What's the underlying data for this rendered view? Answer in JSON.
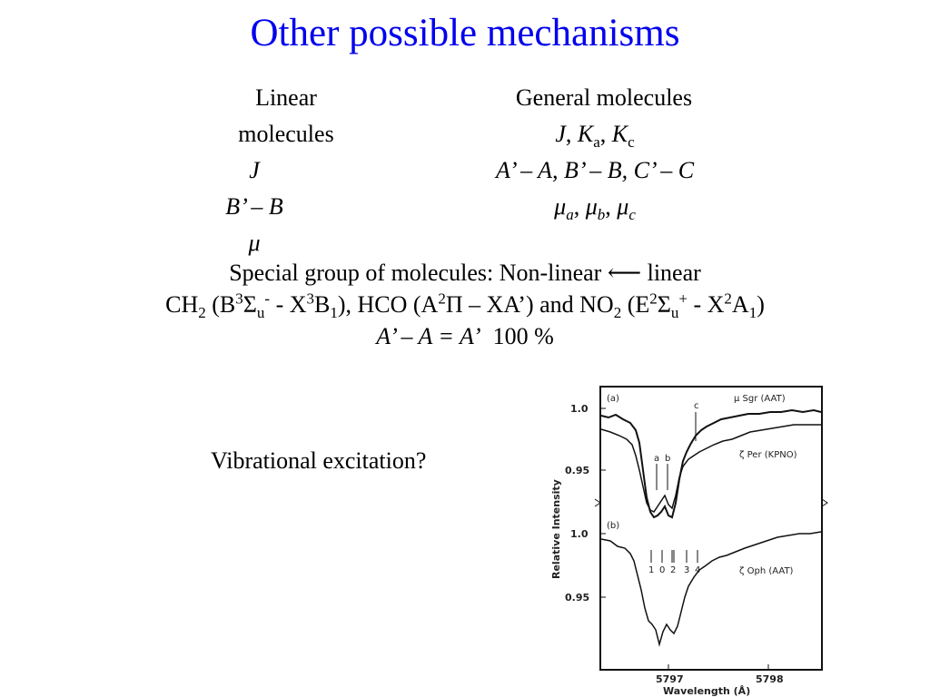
{
  "title": "Other possible mechanisms",
  "columns": {
    "left": {
      "header": "Linear molecules",
      "quantum_numbers": "J",
      "rot_const": "B’ – B",
      "dipole": "μ"
    },
    "right": {
      "header": "General molecules",
      "qn_J": "J",
      "qn_Ka": "K",
      "qn_Ka_sub": "a",
      "qn_Kc": "K",
      "qn_Kc_sub": "c",
      "rot_consts": "A’ – A, B’ – B, C’ – C",
      "mu_a": "a",
      "mu_b": "b",
      "mu_c": "c",
      "mu_symbol": "μ"
    }
  },
  "special": {
    "line1": "Special group of molecules: Non-linear ⟵ linear",
    "line3": "A’ – A = A’",
    "line3_value": "100 %"
  },
  "vibrational": "Vibrational excitation?",
  "figure": {
    "panel_a": "(a)",
    "panel_b": "(b)",
    "trace1": "μ Sgr (AAT)",
    "trace2": "ζ Per (KPNO)",
    "trace3": "ζ Oph (AAT)",
    "ylabel": "Relative Intensity",
    "xlabel": "Wavelength (Å)",
    "y_ticks_top": [
      "1.0",
      "0.95"
    ],
    "y_ticks_bottom": [
      "1.0",
      "0.95"
    ],
    "x_ticks": [
      "5797",
      "5798"
    ],
    "marks_top": [
      "a",
      "b",
      "c"
    ],
    "marks_bottom": [
      "1",
      "0",
      "2",
      "3",
      "4"
    ]
  }
}
